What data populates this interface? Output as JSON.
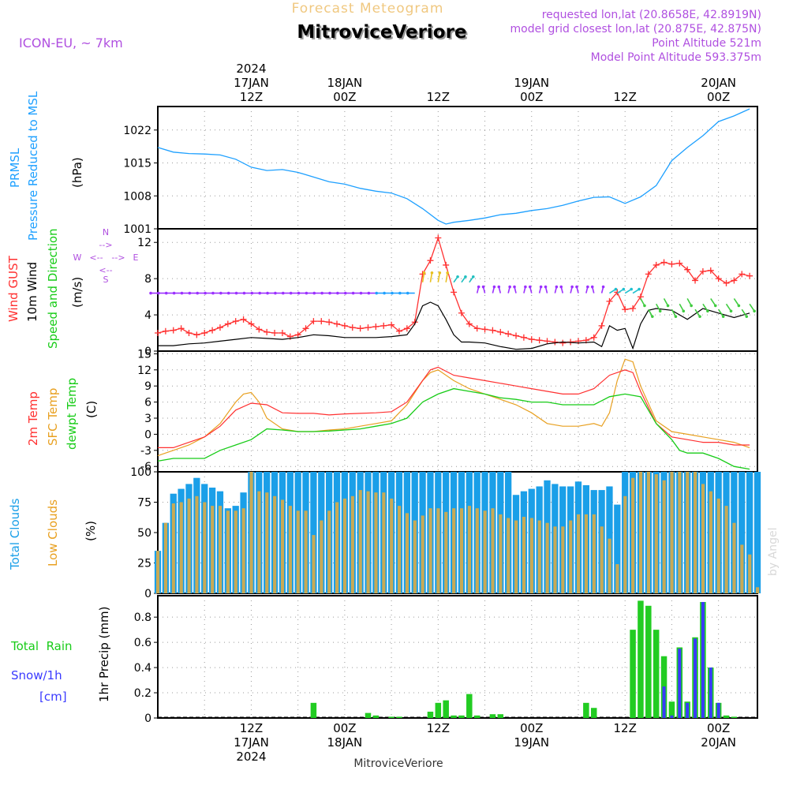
{
  "header": {
    "title": "Forecast Meteogram",
    "location": "MitroviceVeriore",
    "model": "ICON-EU, ~ 7km",
    "requested": "requested lon,lat (20.8658E, 42.8919N)",
    "closest": "model grid closest lon,lat (20.875E, 42.875N)",
    "point_altitude": "Point Altitude 521m",
    "model_altitude": "Model Point Altitude 593.375m",
    "credit": "by Angel",
    "footer_location": "MitroviceVeriore"
  },
  "colors": {
    "prmsl": "#1ea0ff",
    "gust": "#ff3030",
    "wind": "#000000",
    "wind_arrows": "#9b30ff",
    "temp2m": "#ff3030",
    "sfc_temp": "#e8a020",
    "dewpoint": "#18cc18",
    "total_clouds": "#1a9fe8",
    "low_clouds": "#c8aa55",
    "rain": "#22cc22",
    "snow": "#3a3aff",
    "purple": "#b050e0",
    "orange_title": "#f0c880"
  },
  "time_axis": {
    "top_labels": [
      {
        "h": 12,
        "lines": [
          "2024",
          "17JAN",
          "12Z"
        ]
      },
      {
        "h": 24,
        "lines": [
          "18JAN",
          "00Z"
        ]
      },
      {
        "h": 36,
        "lines": [
          "12Z"
        ]
      },
      {
        "h": 48,
        "lines": [
          "19JAN",
          "00Z"
        ]
      },
      {
        "h": 60,
        "lines": [
          "12Z"
        ]
      },
      {
        "h": 72,
        "lines": [
          "20JAN",
          "00Z"
        ]
      }
    ],
    "bottom_labels": [
      {
        "h": 12,
        "lines": [
          "12Z",
          "17JAN",
          "2024"
        ]
      },
      {
        "h": 24,
        "lines": [
          "00Z",
          "18JAN"
        ]
      },
      {
        "h": 36,
        "lines": [
          "12Z"
        ]
      },
      {
        "h": 48,
        "lines": [
          "00Z",
          "19JAN"
        ]
      },
      {
        "h": 60,
        "lines": [
          "12Z"
        ]
      },
      {
        "h": 72,
        "lines": [
          "00Z",
          "20JAN"
        ]
      }
    ],
    "x_range_hours": [
      0,
      77
    ]
  },
  "chart_data": [
    {
      "type": "line",
      "panel": "pressure",
      "side_labels": [
        "PRMSL",
        "Pressure Reduced to MSL",
        "(hPa)"
      ],
      "ylim": [
        1001,
        1027
      ],
      "yticks": [
        1001,
        1008,
        1015,
        1022
      ],
      "series": [
        {
          "name": "PRMSL",
          "x": [
            0,
            2,
            4,
            6,
            8,
            10,
            12,
            14,
            16,
            18,
            20,
            22,
            24,
            26,
            28,
            30,
            32,
            34,
            36,
            37,
            38,
            40,
            42,
            44,
            46,
            48,
            50,
            52,
            54,
            56,
            58,
            60,
            62,
            64,
            66,
            68,
            70,
            72,
            74,
            76
          ],
          "values": [
            1018.3,
            1017.3,
            1017.0,
            1016.9,
            1016.7,
            1015.8,
            1014.1,
            1013.4,
            1013.6,
            1013.0,
            1012.0,
            1011.0,
            1010.5,
            1009.6,
            1009.0,
            1008.6,
            1007.4,
            1005.3,
            1002.8,
            1002.0,
            1002.4,
            1002.8,
            1003.3,
            1004.0,
            1004.3,
            1004.9,
            1005.3,
            1006.0,
            1006.9,
            1007.7,
            1007.8,
            1006.4,
            1007.8,
            1010.2,
            1015.5,
            1018.3,
            1020.8,
            1023.8,
            1025.0,
            1026.5
          ]
        }
      ]
    },
    {
      "type": "line",
      "panel": "wind",
      "side_labels": [
        "Wind GUST",
        "10m Wind",
        "Speed and Direction",
        "(m/s)"
      ],
      "ylim": [
        0,
        13.5
      ],
      "yticks": [
        0,
        4,
        8,
        12
      ],
      "compass": [
        "N",
        "S",
        "W",
        "E",
        "<--",
        "-->"
      ],
      "series": [
        {
          "name": "Wind GUST",
          "x": [
            0,
            1,
            2,
            3,
            4,
            5,
            6,
            7,
            8,
            9,
            10,
            11,
            12,
            13,
            14,
            15,
            16,
            17,
            18,
            19,
            20,
            21,
            22,
            23,
            24,
            25,
            26,
            27,
            28,
            29,
            30,
            31,
            32,
            33,
            34,
            35,
            36,
            37,
            38,
            39,
            40,
            41,
            42,
            43,
            44,
            45,
            46,
            47,
            48,
            49,
            50,
            51,
            52,
            53,
            54,
            55,
            56,
            57,
            58,
            59,
            60,
            61,
            62,
            63,
            64,
            65,
            66,
            67,
            68,
            69,
            70,
            71,
            72,
            73,
            74,
            75,
            76
          ],
          "values": [
            2.0,
            2.2,
            2.3,
            2.5,
            2.0,
            1.8,
            2.0,
            2.3,
            2.6,
            3.0,
            3.3,
            3.5,
            3.0,
            2.4,
            2.1,
            2.0,
            2.0,
            1.6,
            1.8,
            2.5,
            3.3,
            3.3,
            3.2,
            3.0,
            2.8,
            2.6,
            2.5,
            2.6,
            2.7,
            2.8,
            2.9,
            2.2,
            2.5,
            3.2,
            8.5,
            10.0,
            12.5,
            9.5,
            6.5,
            4.2,
            3.0,
            2.5,
            2.4,
            2.3,
            2.1,
            1.9,
            1.7,
            1.5,
            1.3,
            1.2,
            1.1,
            1.0,
            0.9,
            1.0,
            1.1,
            1.2,
            1.5,
            2.8,
            5.5,
            6.5,
            4.6,
            4.7,
            6.0,
            8.5,
            9.5,
            9.8,
            9.6,
            9.7,
            9.0,
            7.8,
            8.8,
            8.9,
            8.0,
            7.5,
            7.8,
            8.5,
            8.3
          ]
        },
        {
          "name": "10m Wind",
          "x": [
            0,
            2,
            4,
            6,
            8,
            10,
            12,
            14,
            16,
            18,
            20,
            22,
            24,
            26,
            28,
            30,
            32,
            33,
            34,
            35,
            36,
            37,
            38,
            39,
            40,
            42,
            44,
            46,
            48,
            50,
            52,
            54,
            56,
            57,
            58,
            59,
            60,
            61,
            62,
            63,
            64,
            66,
            68,
            70,
            72,
            74,
            76
          ],
          "values": [
            0.6,
            0.6,
            0.8,
            0.9,
            1.1,
            1.3,
            1.5,
            1.4,
            1.3,
            1.5,
            1.8,
            1.7,
            1.5,
            1.5,
            1.5,
            1.6,
            1.8,
            3.0,
            5.0,
            5.4,
            5.0,
            3.5,
            1.8,
            1.0,
            1.0,
            0.9,
            0.5,
            0.2,
            0.3,
            0.8,
            1.0,
            0.9,
            1.0,
            0.5,
            2.8,
            2.3,
            2.5,
            0.3,
            3.0,
            4.5,
            4.7,
            4.5,
            3.5,
            4.7,
            4.2,
            3.7,
            4.2
          ]
        }
      ]
    },
    {
      "type": "line",
      "panel": "temperature",
      "side_labels": [
        "2m Temp",
        "SFC Temp",
        "dewpt Temp",
        "(C)"
      ],
      "ylim": [
        -7,
        15.5
      ],
      "yticks": [
        -6,
        -3,
        0,
        3,
        6,
        9,
        12,
        15
      ],
      "series": [
        {
          "name": "2m Temp",
          "x": [
            0,
            2,
            4,
            6,
            8,
            10,
            12,
            14,
            16,
            18,
            20,
            22,
            24,
            26,
            28,
            30,
            32,
            34,
            35,
            36,
            38,
            40,
            42,
            44,
            46,
            48,
            50,
            52,
            54,
            56,
            58,
            60,
            61,
            62,
            64,
            66,
            68,
            70,
            72,
            74,
            76
          ],
          "values": [
            -2.5,
            -2.5,
            -1.5,
            -0.5,
            1.5,
            4.5,
            5.8,
            5.5,
            4.0,
            3.9,
            3.9,
            3.6,
            3.8,
            3.9,
            4.0,
            4.2,
            6.0,
            10.0,
            12.0,
            12.5,
            11.0,
            10.5,
            10.0,
            9.5,
            9.0,
            8.5,
            8.0,
            7.5,
            7.5,
            8.5,
            11.0,
            12.0,
            11.5,
            8.0,
            2.0,
            -0.5,
            -1.0,
            -1.5,
            -1.5,
            -2.0,
            -2.0
          ]
        },
        {
          "name": "SFC Temp",
          "x": [
            0,
            2,
            4,
            6,
            8,
            10,
            11,
            12,
            13,
            14,
            16,
            18,
            20,
            22,
            24,
            26,
            28,
            30,
            32,
            34,
            35,
            36,
            38,
            40,
            42,
            44,
            46,
            48,
            50,
            52,
            54,
            56,
            57,
            58,
            59,
            60,
            61,
            62,
            64,
            66,
            68,
            70,
            72,
            74,
            76
          ],
          "values": [
            -4.0,
            -3.0,
            -2.0,
            -0.5,
            2.0,
            6.0,
            7.5,
            7.8,
            6.0,
            3.0,
            1.0,
            0.5,
            0.5,
            0.8,
            1.0,
            1.5,
            2.0,
            2.5,
            5.5,
            10.0,
            11.5,
            12.0,
            10.0,
            8.5,
            7.5,
            6.5,
            5.5,
            4.0,
            2.0,
            1.5,
            1.5,
            2.0,
            1.5,
            4.0,
            10.0,
            14.0,
            13.5,
            9.0,
            2.5,
            0.5,
            0.0,
            -0.5,
            -1.0,
            -1.5,
            -2.5
          ]
        },
        {
          "name": "dewpt Temp",
          "x": [
            0,
            2,
            4,
            6,
            8,
            10,
            12,
            14,
            16,
            18,
            20,
            22,
            24,
            26,
            28,
            30,
            32,
            34,
            36,
            38,
            40,
            42,
            44,
            46,
            48,
            50,
            52,
            54,
            56,
            58,
            60,
            62,
            64,
            66,
            67,
            68,
            70,
            72,
            74,
            76
          ],
          "values": [
            -5.0,
            -4.5,
            -4.5,
            -4.5,
            -3.0,
            -2.0,
            -1.0,
            1.0,
            0.8,
            0.5,
            0.5,
            0.6,
            0.8,
            1.0,
            1.5,
            2.0,
            3.0,
            6.0,
            7.5,
            8.5,
            8.0,
            7.5,
            6.8,
            6.5,
            6.0,
            6.0,
            5.5,
            5.5,
            5.5,
            7.0,
            7.5,
            7.0,
            2.0,
            -1.0,
            -3.0,
            -3.5,
            -3.5,
            -4.5,
            -6.0,
            -6.5
          ]
        }
      ]
    },
    {
      "type": "bar",
      "panel": "clouds",
      "side_labels": [
        "Total Clouds",
        "Low Clouds",
        "(%)"
      ],
      "ylim": [
        0,
        100
      ],
      "yticks": [
        0,
        25,
        50,
        75,
        100
      ],
      "x_hours": [
        0,
        1,
        2,
        3,
        4,
        5,
        6,
        7,
        8,
        9,
        10,
        11,
        12,
        13,
        14,
        15,
        16,
        17,
        18,
        19,
        20,
        21,
        22,
        23,
        24,
        25,
        26,
        27,
        28,
        29,
        30,
        31,
        32,
        33,
        34,
        35,
        36,
        37,
        38,
        39,
        40,
        41,
        42,
        43,
        44,
        45,
        46,
        47,
        48,
        49,
        50,
        51,
        52,
        53,
        54,
        55,
        56,
        57,
        58,
        59,
        60,
        61,
        62,
        63,
        64,
        65,
        66,
        67,
        68,
        69,
        70,
        71,
        72,
        73,
        74,
        75,
        76,
        77
      ],
      "series": [
        {
          "name": "Total Clouds",
          "values": [
            35,
            58,
            82,
            86,
            90,
            95,
            90,
            87,
            84,
            70,
            72,
            83,
            100,
            100,
            100,
            100,
            100,
            100,
            100,
            100,
            100,
            100,
            100,
            100,
            100,
            100,
            100,
            100,
            100,
            100,
            100,
            100,
            100,
            100,
            100,
            100,
            100,
            100,
            100,
            100,
            100,
            100,
            100,
            100,
            100,
            100,
            81,
            84,
            86,
            88,
            93,
            90,
            88,
            88,
            92,
            89,
            85,
            85,
            88,
            73,
            100,
            100,
            100,
            100,
            100,
            100,
            100,
            100,
            100,
            100,
            100,
            100,
            100,
            100,
            100,
            100,
            100,
            100
          ]
        },
        {
          "name": "Low Clouds",
          "values": [
            35,
            58,
            74,
            75,
            78,
            80,
            75,
            72,
            72,
            68,
            68,
            70,
            100,
            84,
            83,
            80,
            77,
            72,
            68,
            68,
            48,
            60,
            68,
            75,
            78,
            80,
            85,
            84,
            83,
            83,
            78,
            72,
            66,
            60,
            64,
            70,
            70,
            67,
            70,
            70,
            72,
            70,
            68,
            70,
            65,
            62,
            60,
            63,
            62,
            60,
            58,
            55,
            55,
            60,
            65,
            65,
            65,
            55,
            45,
            24,
            80,
            95,
            100,
            100,
            98,
            93,
            100,
            100,
            100,
            100,
            90,
            84,
            78,
            72,
            58,
            40,
            32,
            5
          ]
        }
      ]
    },
    {
      "type": "bar",
      "panel": "precip",
      "side_labels": [
        "Total  Rain",
        "Snow/1h",
        "[cm]",
        "1hr Precip (mm)"
      ],
      "ylim": [
        0,
        0.97
      ],
      "yticks": [
        0,
        0.2,
        0.4,
        0.6,
        0.8
      ],
      "series": [
        {
          "name": "Total Rain",
          "x": [
            20,
            27,
            28,
            30,
            31,
            35,
            36,
            37,
            38,
            39,
            40,
            41,
            43,
            44,
            55,
            56,
            61,
            62,
            63,
            64,
            65,
            66,
            67,
            68,
            69,
            70,
            71,
            72,
            73,
            74
          ],
          "values": [
            0.12,
            0.04,
            0.02,
            0.01,
            0.01,
            0.05,
            0.12,
            0.14,
            0.02,
            0.02,
            0.19,
            0.02,
            0.03,
            0.03,
            0.12,
            0.08,
            0.7,
            0.93,
            0.89,
            0.7,
            0.49,
            0.13,
            0.56,
            0.13,
            0.64,
            0.92,
            0.4,
            0.12,
            0.02,
            0.01
          ]
        },
        {
          "name": "Snow/1h",
          "x": [
            65,
            66,
            67,
            68,
            69,
            70,
            71,
            72
          ],
          "values": [
            0.25,
            0.02,
            0.55,
            0.12,
            0.63,
            0.92,
            0.4,
            0.12
          ]
        }
      ]
    }
  ]
}
